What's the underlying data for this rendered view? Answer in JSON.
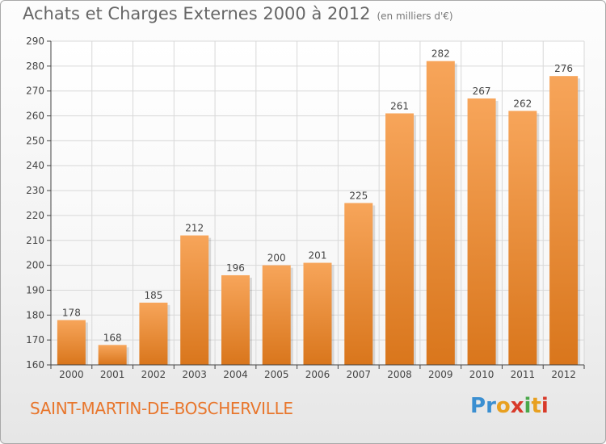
{
  "header": {
    "title": "Achats et Charges Externes 2000 à 2012",
    "subtitle": "(en milliers d'€)"
  },
  "footer": {
    "commune": "SAINT-MARTIN-DE-BOSCHERVILLE",
    "logo_letters": [
      "P",
      "r",
      "o",
      "x",
      "i",
      "t",
      "i"
    ],
    "logo_colors": [
      "#3b8fd1",
      "#3b8fd1",
      "#e8a020",
      "#d83a2a",
      "#4aa84a",
      "#e8a020",
      "#d83a2a"
    ]
  },
  "chart_data": {
    "type": "bar",
    "categories": [
      "2000",
      "2001",
      "2002",
      "2003",
      "2004",
      "2005",
      "2006",
      "2007",
      "2008",
      "2009",
      "2010",
      "2011",
      "2012"
    ],
    "values": [
      178,
      168,
      185,
      212,
      196,
      200,
      201,
      225,
      261,
      282,
      267,
      262,
      276
    ],
    "ylim": [
      160,
      290
    ],
    "yticks": [
      160,
      170,
      180,
      190,
      200,
      210,
      220,
      230,
      240,
      250,
      260,
      270,
      280,
      290
    ],
    "grid": true,
    "colors": {
      "bar_top": "#f7a55a",
      "bar_bottom": "#d9761c",
      "grid": "#d8d8d8",
      "axis": "#444444",
      "tick_label": "#444444"
    }
  }
}
